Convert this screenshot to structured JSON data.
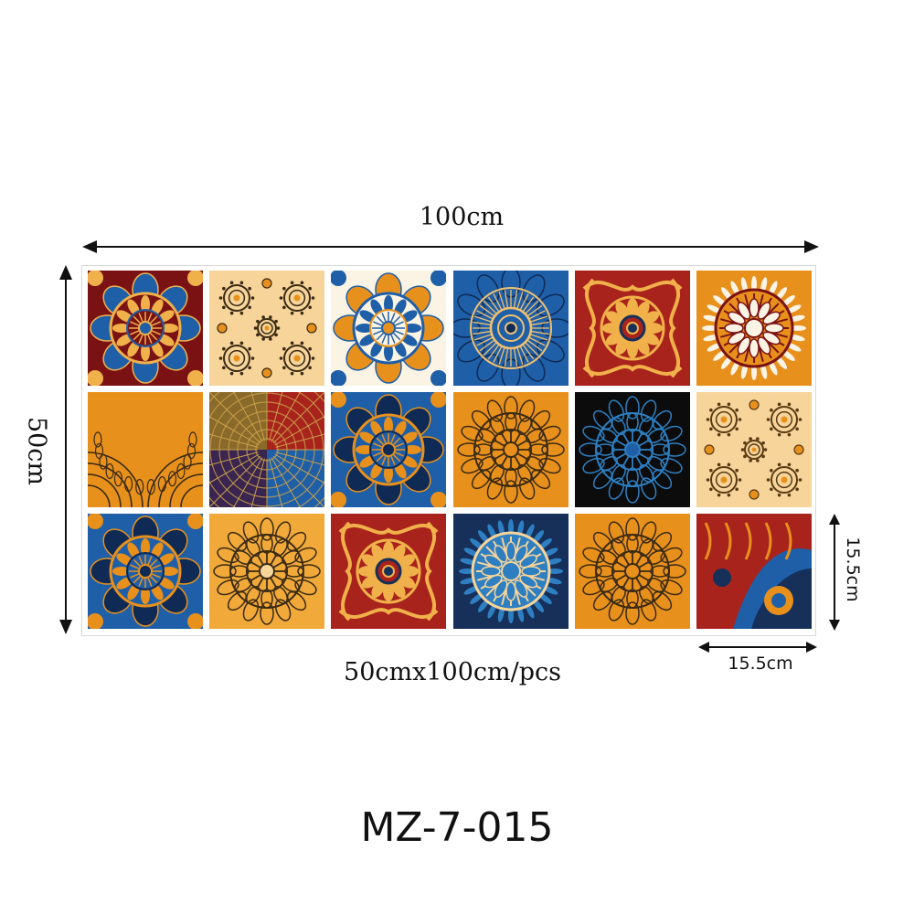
{
  "dimensions": {
    "width_label": "100cm",
    "height_label": "50cm",
    "tile_width_label": "15.5cm",
    "tile_height_label": "15.5cm",
    "size_caption": "50cmx100cm/pcs"
  },
  "product": {
    "model_code": "MZ-7-015"
  },
  "colors": {
    "maroon": "#7a1214",
    "red": "#a8231c",
    "orange": "#e8901c",
    "sand": "#f3c986",
    "blue": "#1e5fa8",
    "navy": "#16305a",
    "black": "#111111",
    "cream": "#fbe9c8"
  },
  "tiles": [
    {
      "row": 1,
      "col": 1,
      "bg": "#7a1214",
      "fg": "#f0b04a",
      "accent": "#1e5fa8",
      "style": "medallion"
    },
    {
      "row": 1,
      "col": 2,
      "bg": "#f6d49a",
      "fg": "#3a2a14",
      "accent": "#e8901c",
      "style": "dots"
    },
    {
      "row": 1,
      "col": 3,
      "bg": "#fbf3e4",
      "fg": "#1e5fa8",
      "accent": "#e8901c",
      "style": "medallion"
    },
    {
      "row": 1,
      "col": 4,
      "bg": "#1e5fa8",
      "fg": "#0f2a55",
      "accent": "#f0c070",
      "style": "rings"
    },
    {
      "row": 1,
      "col": 5,
      "bg": "#a8231c",
      "fg": "#f0b04a",
      "accent": "#16305a",
      "style": "flower"
    },
    {
      "row": 1,
      "col": 6,
      "bg": "#e8901c",
      "fg": "#7a1214",
      "accent": "#fbf3e4",
      "style": "sun"
    },
    {
      "row": 2,
      "col": 1,
      "bg": "#e8901c",
      "fg": "#3a2a14",
      "accent": "#e8901c",
      "style": "quarter"
    },
    {
      "row": 2,
      "col": 2,
      "bg": "#2a1f30",
      "fg": "#c9a14a",
      "accent": "#1e5fa8",
      "style": "split"
    },
    {
      "row": 2,
      "col": 3,
      "bg": "#1e5fa8",
      "fg": "#e8901c",
      "accent": "#0f2a55",
      "style": "medallion"
    },
    {
      "row": 2,
      "col": 4,
      "bg": "#e8901c",
      "fg": "#3a2a14",
      "accent": "#e8901c",
      "style": "mandala"
    },
    {
      "row": 2,
      "col": 5,
      "bg": "#0c0c0c",
      "fg": "#2e7fc2",
      "accent": "#1e5fa8",
      "style": "mandala"
    },
    {
      "row": 2,
      "col": 6,
      "bg": "#f6d49a",
      "fg": "#5a3a14",
      "accent": "#e8901c",
      "style": "dots"
    },
    {
      "row": 3,
      "col": 1,
      "bg": "#1e5fa8",
      "fg": "#e8901c",
      "accent": "#0f2a55",
      "style": "medallion"
    },
    {
      "row": 3,
      "col": 2,
      "bg": "#f1a93a",
      "fg": "#3a2a14",
      "accent": "#f6d49a",
      "style": "mandala"
    },
    {
      "row": 3,
      "col": 3,
      "bg": "#a8231c",
      "fg": "#f0b04a",
      "accent": "#16305a",
      "style": "flower"
    },
    {
      "row": 3,
      "col": 4,
      "bg": "#16305a",
      "fg": "#f6d49a",
      "accent": "#2e7fc2",
      "style": "sun"
    },
    {
      "row": 3,
      "col": 5,
      "bg": "#e8901c",
      "fg": "#3a2a14",
      "accent": "#e8901c",
      "style": "mandala"
    },
    {
      "row": 3,
      "col": 6,
      "bg": "#1e5fa8",
      "fg": "#e8901c",
      "accent": "#a8231c",
      "style": "corner"
    }
  ]
}
